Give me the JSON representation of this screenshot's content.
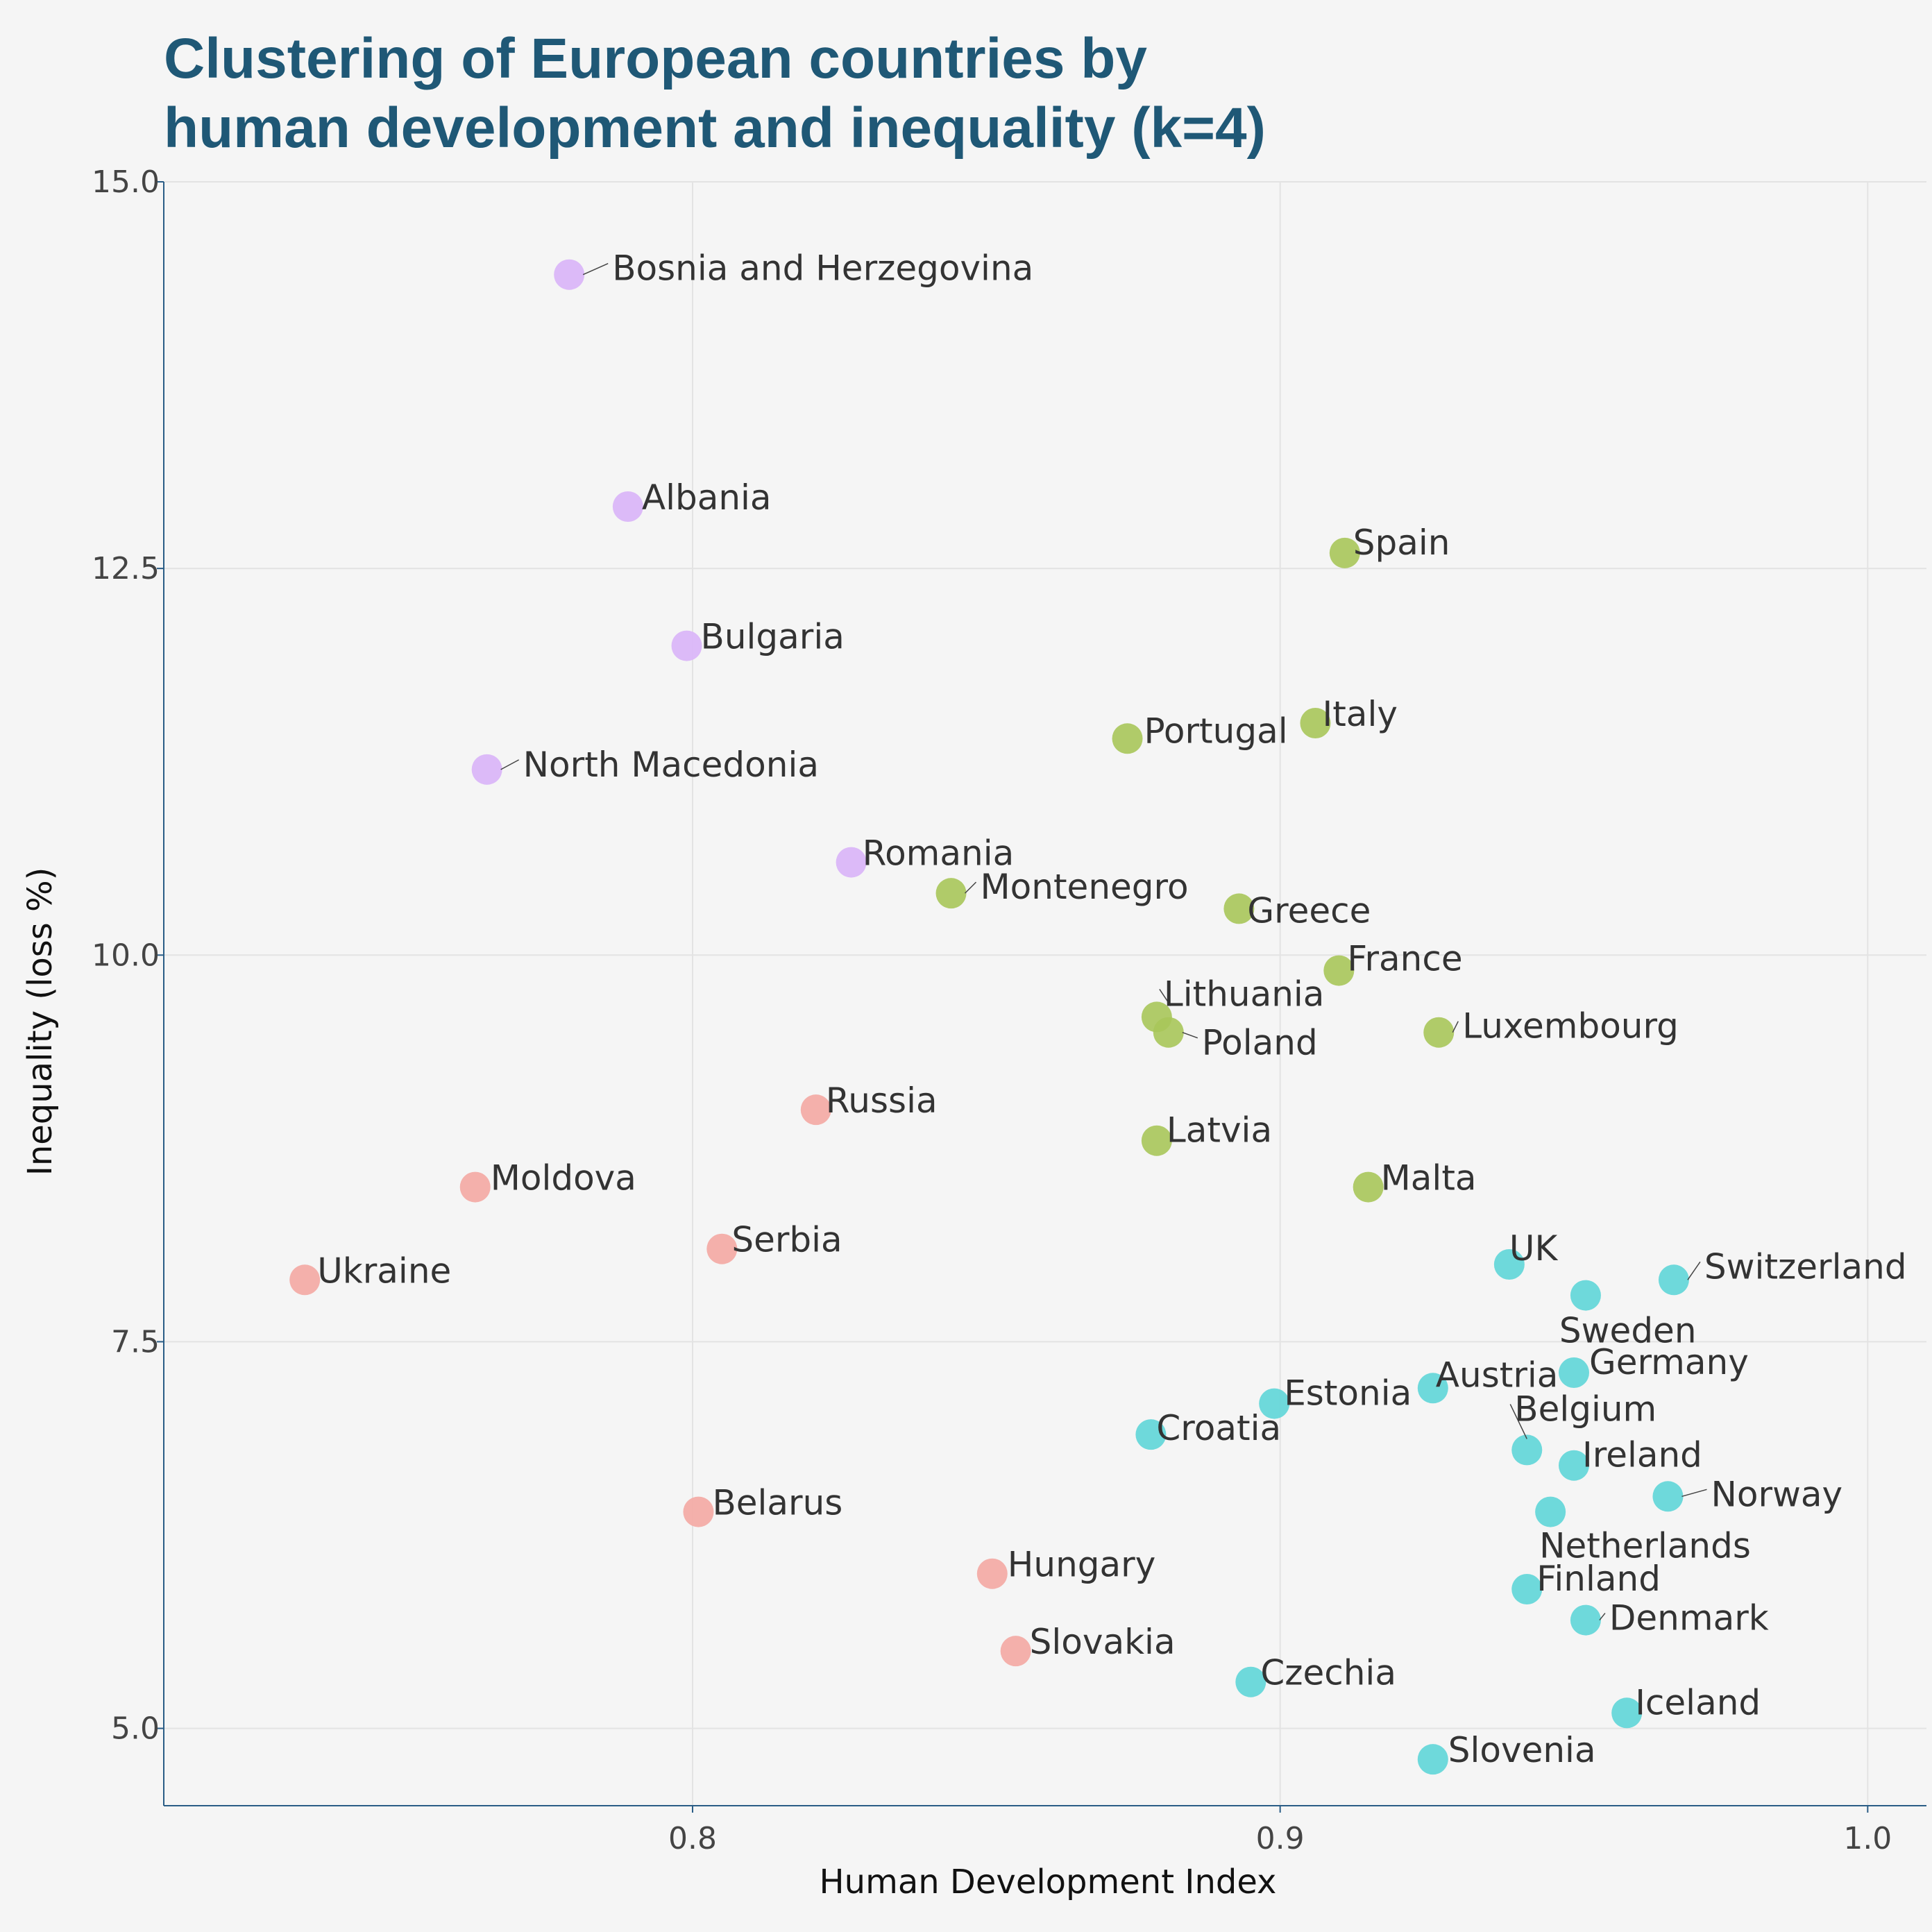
{
  "chart_data": {
    "type": "scatter",
    "title": "Clustering of European countries by\nhuman development and inequality (k=4)",
    "xlabel": "Human Development Index",
    "ylabel": "Inequality (loss %)",
    "xlim": [
      0.71,
      1.01
    ],
    "ylim": [
      4.5,
      15.0
    ],
    "xticks": [
      0.8,
      0.9,
      1.0
    ],
    "xtick_labels": [
      "0.8",
      "0.9",
      "1.0"
    ],
    "yticks": [
      5.0,
      7.5,
      10.0,
      12.5,
      15.0
    ],
    "ytick_labels": [
      "5.0",
      "7.5",
      "10.0",
      "12.5",
      "15.0"
    ],
    "grid": true,
    "cluster_colors": [
      "#f4a8a3",
      "#a8c65a",
      "#5fd6d8",
      "#d9b4f8"
    ],
    "points": [
      {
        "label": "Bosnia and Herzegovina",
        "x": 0.779,
        "y": 14.4,
        "cluster": 3
      },
      {
        "label": "Albania",
        "x": 0.789,
        "y": 12.9,
        "cluster": 3
      },
      {
        "label": "Bulgaria",
        "x": 0.799,
        "y": 12.0,
        "cluster": 3
      },
      {
        "label": "North Macedonia",
        "x": 0.765,
        "y": 11.2,
        "cluster": 3
      },
      {
        "label": "Romania",
        "x": 0.827,
        "y": 10.6,
        "cluster": 3
      },
      {
        "label": "Spain",
        "x": 0.911,
        "y": 12.6,
        "cluster": 1
      },
      {
        "label": "Italy",
        "x": 0.906,
        "y": 11.5,
        "cluster": 1
      },
      {
        "label": "Portugal",
        "x": 0.874,
        "y": 11.4,
        "cluster": 1
      },
      {
        "label": "Montenegro",
        "x": 0.844,
        "y": 10.4,
        "cluster": 1
      },
      {
        "label": "Greece",
        "x": 0.893,
        "y": 10.3,
        "cluster": 1
      },
      {
        "label": "France",
        "x": 0.91,
        "y": 9.9,
        "cluster": 1
      },
      {
        "label": "Lithuania",
        "x": 0.879,
        "y": 9.6,
        "cluster": 1
      },
      {
        "label": "Poland",
        "x": 0.881,
        "y": 9.5,
        "cluster": 1
      },
      {
        "label": "Luxembourg",
        "x": 0.927,
        "y": 9.5,
        "cluster": 1
      },
      {
        "label": "Latvia",
        "x": 0.879,
        "y": 8.8,
        "cluster": 1
      },
      {
        "label": "Malta",
        "x": 0.915,
        "y": 8.5,
        "cluster": 1
      },
      {
        "label": "Russia",
        "x": 0.821,
        "y": 9.0,
        "cluster": 0
      },
      {
        "label": "Moldova",
        "x": 0.763,
        "y": 8.5,
        "cluster": 0
      },
      {
        "label": "Serbia",
        "x": 0.805,
        "y": 8.1,
        "cluster": 0
      },
      {
        "label": "Ukraine",
        "x": 0.734,
        "y": 7.9,
        "cluster": 0
      },
      {
        "label": "Belarus",
        "x": 0.801,
        "y": 6.4,
        "cluster": 0
      },
      {
        "label": "Hungary",
        "x": 0.851,
        "y": 6.0,
        "cluster": 0
      },
      {
        "label": "Slovakia",
        "x": 0.855,
        "y": 5.5,
        "cluster": 0
      },
      {
        "label": "UK",
        "x": 0.939,
        "y": 8.0,
        "cluster": 2
      },
      {
        "label": "Switzerland",
        "x": 0.967,
        "y": 7.9,
        "cluster": 2
      },
      {
        "label": "Sweden",
        "x": 0.952,
        "y": 7.8,
        "cluster": 2
      },
      {
        "label": "Germany",
        "x": 0.95,
        "y": 7.3,
        "cluster": 2
      },
      {
        "label": "Austria",
        "x": 0.926,
        "y": 7.2,
        "cluster": 2
      },
      {
        "label": "Estonia",
        "x": 0.899,
        "y": 7.1,
        "cluster": 2
      },
      {
        "label": "Croatia",
        "x": 0.878,
        "y": 6.9,
        "cluster": 2
      },
      {
        "label": "Belgium",
        "x": 0.942,
        "y": 6.8,
        "cluster": 2
      },
      {
        "label": "Ireland",
        "x": 0.95,
        "y": 6.7,
        "cluster": 2
      },
      {
        "label": "Norway",
        "x": 0.966,
        "y": 6.5,
        "cluster": 2
      },
      {
        "label": "Netherlands",
        "x": 0.946,
        "y": 6.4,
        "cluster": 2
      },
      {
        "label": "Finland",
        "x": 0.942,
        "y": 5.9,
        "cluster": 2
      },
      {
        "label": "Denmark",
        "x": 0.952,
        "y": 5.7,
        "cluster": 2
      },
      {
        "label": "Czechia",
        "x": 0.895,
        "y": 5.3,
        "cluster": 2
      },
      {
        "label": "Iceland",
        "x": 0.959,
        "y": 5.1,
        "cluster": 2
      },
      {
        "label": "Slovenia",
        "x": 0.926,
        "y": 4.8,
        "cluster": 2
      }
    ]
  }
}
